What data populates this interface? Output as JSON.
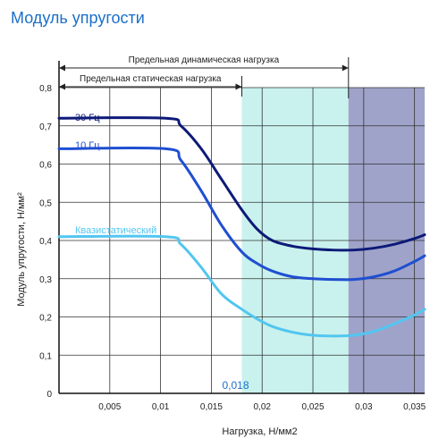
{
  "title": "Модуль упругости",
  "chart_data": {
    "type": "line",
    "title": "Модуль упругости",
    "xlabel": "Нагрузка, Н/мм2",
    "ylabel": "Модуль упругости, Н/мм²",
    "xlim": [
      0,
      0.036
    ],
    "ylim": [
      0,
      0.8
    ],
    "x_ticks": [
      "0,005",
      "0,01",
      "0,015",
      "0,02",
      "0,025",
      "0,03",
      "0,035"
    ],
    "y_ticks": [
      "0",
      "0,1",
      "0,2",
      "0,3",
      "0,4",
      "0,5",
      "0,6",
      "0,7",
      "0,8"
    ],
    "grid": true,
    "regions": [
      {
        "from": 0.018,
        "to": 0.0285,
        "color": "#c9f2ee",
        "label": "0,018"
      },
      {
        "from": 0.0285,
        "to": 0.036,
        "color": "#9fa3c9"
      }
    ],
    "ranges": [
      {
        "label": "Предельная динамическая нагрузка",
        "from": 0,
        "to": 0.0285
      },
      {
        "label": "Предельная статическая нагрузка",
        "from": 0,
        "to": 0.018
      }
    ],
    "series": [
      {
        "name": "30 Гц",
        "color": "#0d1a78",
        "x": [
          0,
          0.0105,
          0.012,
          0.014,
          0.016,
          0.018,
          0.0195,
          0.021,
          0.023,
          0.025,
          0.027,
          0.029,
          0.031,
          0.033,
          0.035,
          0.036
        ],
        "y": [
          0.72,
          0.72,
          0.7,
          0.64,
          0.56,
          0.48,
          0.43,
          0.4,
          0.385,
          0.378,
          0.375,
          0.375,
          0.38,
          0.39,
          0.405,
          0.415
        ]
      },
      {
        "name": "10 Гц",
        "color": "#1f4fd1",
        "x": [
          0,
          0.0105,
          0.012,
          0.014,
          0.016,
          0.018,
          0.0195,
          0.021,
          0.023,
          0.025,
          0.027,
          0.029,
          0.031,
          0.033,
          0.035,
          0.036
        ],
        "y": [
          0.64,
          0.64,
          0.61,
          0.53,
          0.44,
          0.37,
          0.34,
          0.32,
          0.305,
          0.3,
          0.298,
          0.298,
          0.305,
          0.32,
          0.345,
          0.36
        ]
      },
      {
        "name": "Квазистатический",
        "color": "#52c6f0",
        "x": [
          0,
          0.0105,
          0.012,
          0.014,
          0.016,
          0.018,
          0.0195,
          0.021,
          0.023,
          0.025,
          0.027,
          0.029,
          0.031,
          0.033,
          0.035,
          0.036
        ],
        "y": [
          0.41,
          0.41,
          0.39,
          0.33,
          0.26,
          0.22,
          0.195,
          0.175,
          0.16,
          0.152,
          0.15,
          0.152,
          0.162,
          0.182,
          0.205,
          0.22
        ]
      }
    ]
  }
}
